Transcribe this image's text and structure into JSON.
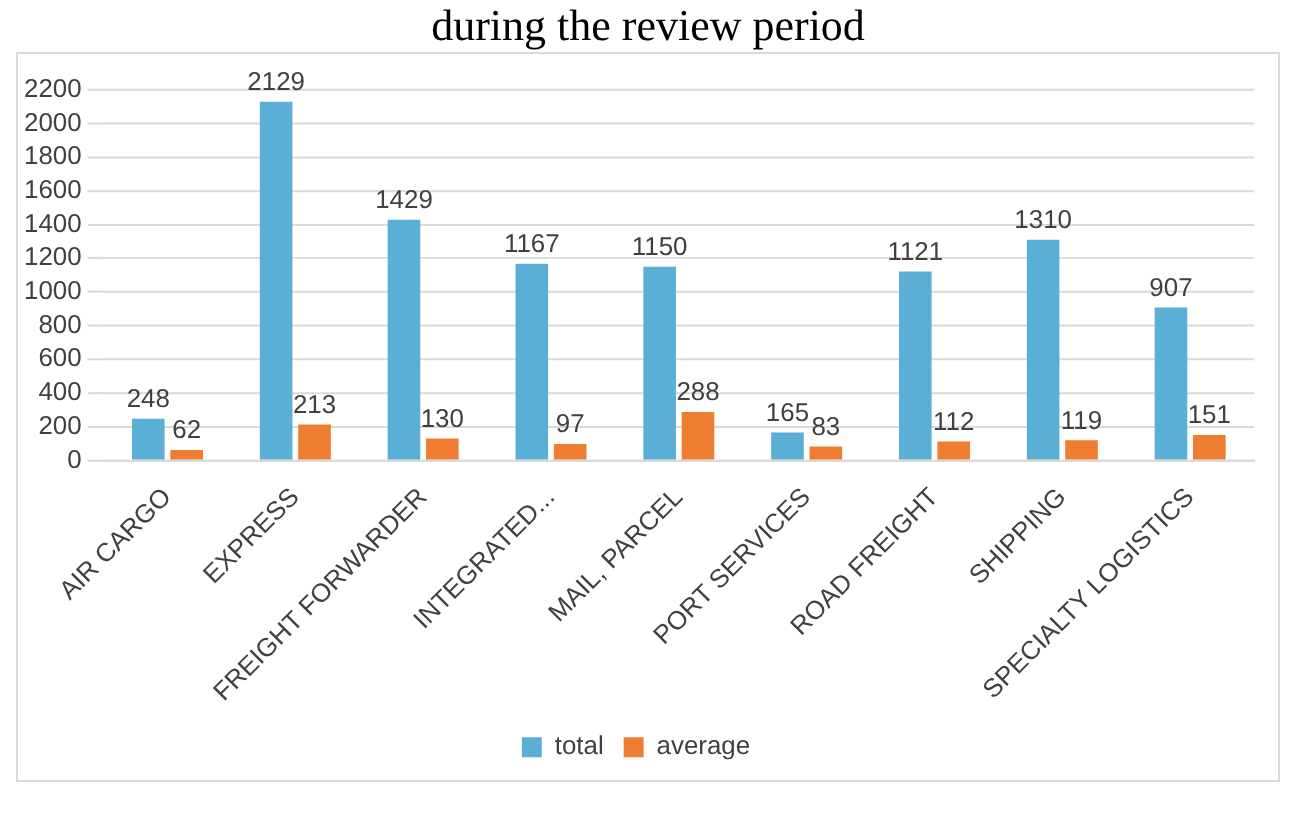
{
  "chart_data": {
    "type": "bar",
    "title": "during the review period",
    "categories": [
      "AIR CARGO",
      "EXPRESS",
      "FREIGHT FORWARDER",
      "INTEGRATED...",
      "MAIL, PARCEL",
      "PORT SERVICES",
      "ROAD FREIGHT",
      "SHIPPING",
      "SPECIALTY LOGISTICS"
    ],
    "series": [
      {
        "name": "total",
        "color": "#5bafd6",
        "values": [
          248,
          2129,
          1429,
          1167,
          1150,
          165,
          1121,
          1310,
          907
        ]
      },
      {
        "name": "average",
        "color": "#ed7d31",
        "values": [
          62,
          213,
          130,
          97,
          288,
          83,
          112,
          119,
          151
        ]
      }
    ],
    "ylim": [
      0,
      2200
    ],
    "yticks": [
      0,
      200,
      400,
      600,
      800,
      1000,
      1200,
      1400,
      1600,
      1800,
      2000,
      2200
    ],
    "grid": "y",
    "legend": "bottom",
    "data_labels": true
  }
}
